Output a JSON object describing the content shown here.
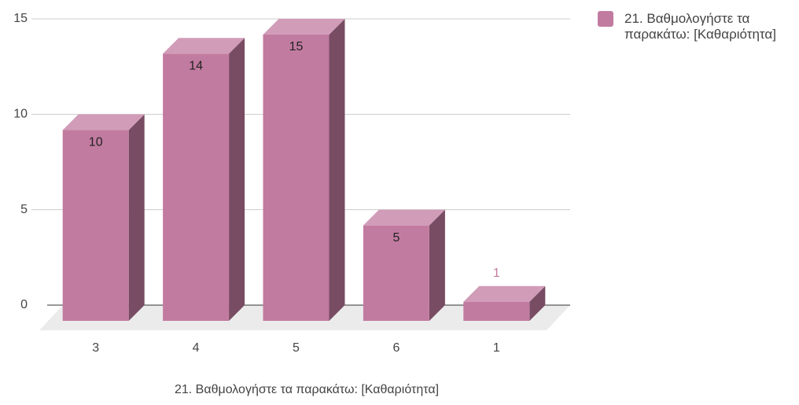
{
  "chart_data": {
    "type": "bar3d",
    "x_label": "21. Βαθμολογήστε τα παρακάτω: [Καθαριότητα]",
    "categories": [
      "3",
      "4",
      "5",
      "6",
      "1"
    ],
    "series": [
      {
        "name": "21. Βαθμολογήστε τα παρακάτω: [Καθαριότητα]",
        "color": "#c27ba0",
        "values": [
          10,
          14,
          15,
          5,
          1
        ]
      }
    ],
    "ylim": [
      0,
      15
    ],
    "yticks": [
      0,
      5,
      10,
      15
    ],
    "grid": true,
    "legend": "right"
  }
}
